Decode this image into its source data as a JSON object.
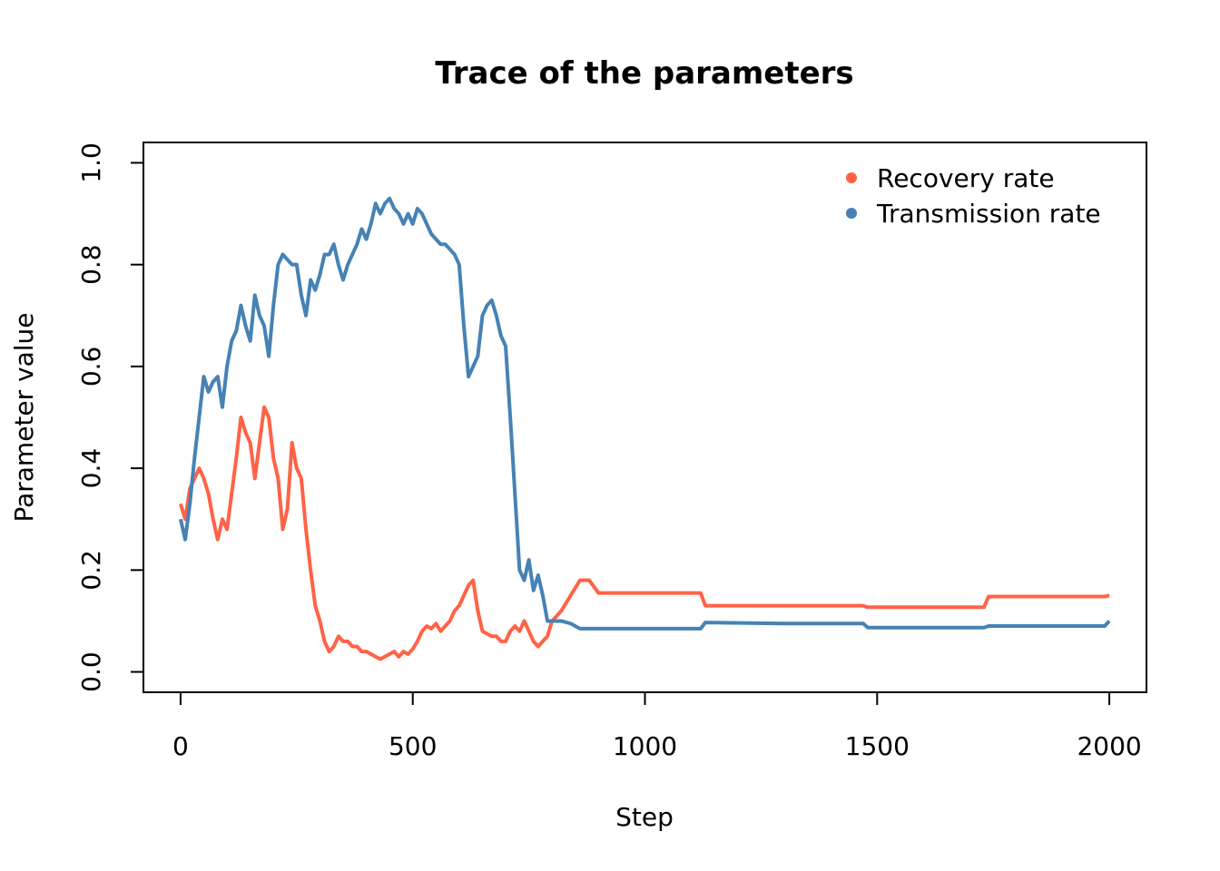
{
  "chart_data": {
    "type": "line",
    "title": "Trace of the parameters",
    "x_label": "Step",
    "y_label": "Parameter value",
    "x": [
      0,
      10,
      20,
      30,
      40,
      50,
      60,
      70,
      80,
      90,
      100,
      110,
      120,
      130,
      140,
      150,
      160,
      170,
      180,
      190,
      200,
      210,
      220,
      230,
      240,
      250,
      260,
      270,
      280,
      290,
      300,
      310,
      320,
      330,
      340,
      350,
      360,
      370,
      380,
      390,
      400,
      410,
      420,
      430,
      440,
      450,
      460,
      470,
      480,
      490,
      500,
      510,
      520,
      530,
      540,
      550,
      560,
      570,
      580,
      590,
      600,
      610,
      620,
      630,
      640,
      650,
      660,
      670,
      680,
      690,
      700,
      710,
      720,
      730,
      740,
      750,
      760,
      770,
      780,
      790,
      800,
      820,
      840,
      860,
      880,
      900,
      1000,
      1120,
      1130,
      1300,
      1470,
      1480,
      1600,
      1730,
      1740,
      1900,
      1990,
      2000
    ],
    "series": [
      {
        "name": "Recovery rate",
        "color": "#ff6347",
        "values": [
          0.33,
          0.3,
          0.36,
          0.38,
          0.4,
          0.38,
          0.35,
          0.3,
          0.26,
          0.3,
          0.28,
          0.35,
          0.42,
          0.5,
          0.47,
          0.45,
          0.38,
          0.45,
          0.52,
          0.5,
          0.42,
          0.38,
          0.28,
          0.32,
          0.45,
          0.4,
          0.38,
          0.28,
          0.2,
          0.13,
          0.1,
          0.06,
          0.04,
          0.05,
          0.07,
          0.06,
          0.06,
          0.05,
          0.05,
          0.04,
          0.04,
          0.035,
          0.03,
          0.025,
          0.03,
          0.035,
          0.04,
          0.03,
          0.04,
          0.035,
          0.045,
          0.06,
          0.08,
          0.09,
          0.085,
          0.095,
          0.08,
          0.09,
          0.1,
          0.12,
          0.13,
          0.15,
          0.17,
          0.18,
          0.12,
          0.08,
          0.075,
          0.07,
          0.07,
          0.06,
          0.06,
          0.08,
          0.09,
          0.08,
          0.1,
          0.08,
          0.06,
          0.05,
          0.06,
          0.07,
          0.1,
          0.12,
          0.15,
          0.18,
          0.18,
          0.155,
          0.155,
          0.155,
          0.13,
          0.13,
          0.13,
          0.127,
          0.127,
          0.127,
          0.148,
          0.148,
          0.148,
          0.15
        ]
      },
      {
        "name": "Transmission rate",
        "color": "#4682b4",
        "values": [
          0.3,
          0.26,
          0.33,
          0.42,
          0.5,
          0.58,
          0.55,
          0.57,
          0.58,
          0.52,
          0.6,
          0.65,
          0.67,
          0.72,
          0.68,
          0.65,
          0.74,
          0.7,
          0.68,
          0.62,
          0.72,
          0.8,
          0.82,
          0.81,
          0.8,
          0.8,
          0.74,
          0.7,
          0.77,
          0.75,
          0.78,
          0.82,
          0.82,
          0.84,
          0.8,
          0.77,
          0.8,
          0.82,
          0.84,
          0.87,
          0.85,
          0.88,
          0.92,
          0.9,
          0.92,
          0.93,
          0.91,
          0.9,
          0.88,
          0.9,
          0.88,
          0.91,
          0.9,
          0.88,
          0.86,
          0.85,
          0.84,
          0.84,
          0.83,
          0.82,
          0.8,
          0.68,
          0.58,
          0.6,
          0.62,
          0.7,
          0.72,
          0.73,
          0.7,
          0.66,
          0.64,
          0.5,
          0.35,
          0.2,
          0.18,
          0.22,
          0.16,
          0.19,
          0.15,
          0.1,
          0.1,
          0.1,
          0.095,
          0.085,
          0.085,
          0.085,
          0.085,
          0.085,
          0.097,
          0.095,
          0.095,
          0.087,
          0.087,
          0.087,
          0.09,
          0.09,
          0.09,
          0.1
        ]
      }
    ],
    "xlim": [
      -80,
      2080
    ],
    "ylim": [
      -0.04,
      1.04
    ],
    "xticks": [
      0,
      500,
      1000,
      1500,
      2000
    ],
    "yticks": [
      {
        "value": 0,
        "label": "0.0"
      },
      0.2,
      0.4,
      0.6,
      0.8,
      {
        "value": 1,
        "label": "1.0"
      }
    ],
    "legend": "topright"
  }
}
